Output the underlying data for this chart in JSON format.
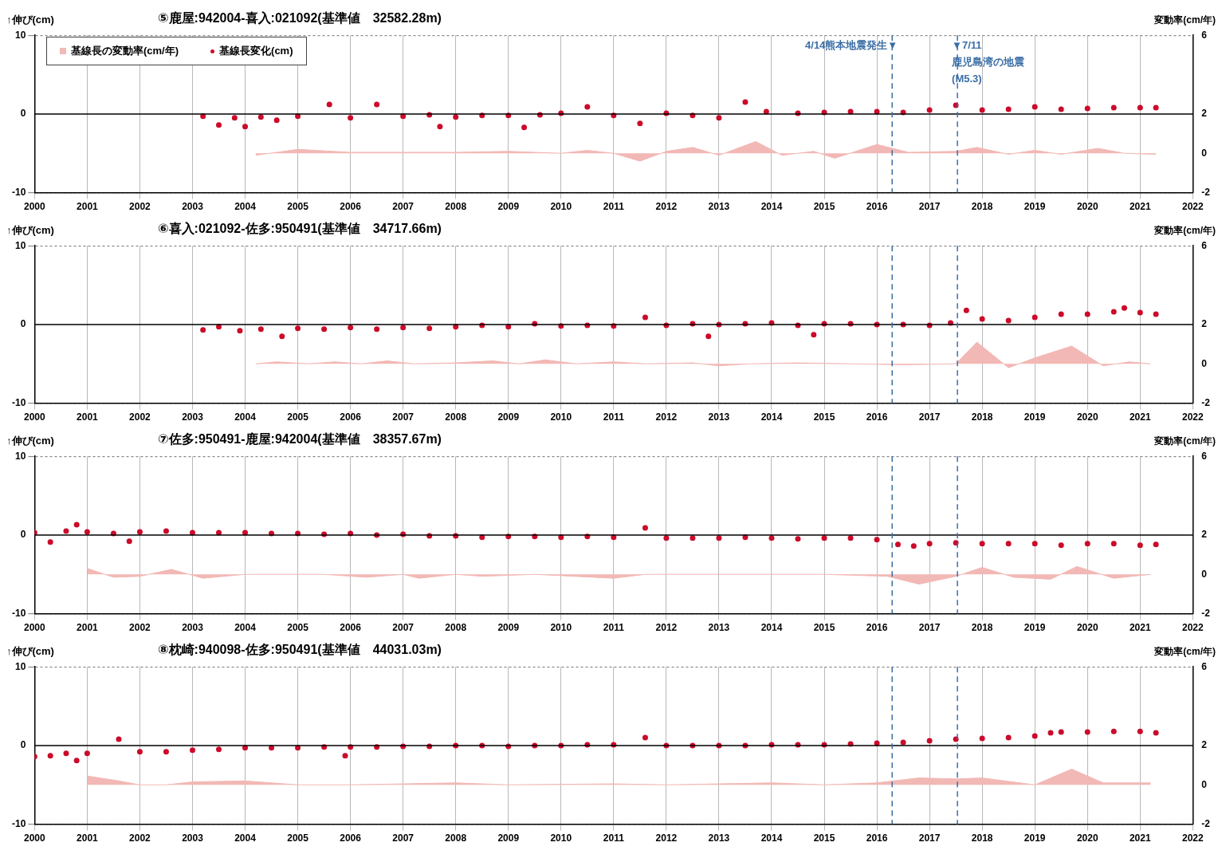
{
  "chart_data": [
    {
      "type": "scatter",
      "title": "⑤鹿屋:942004-喜入:021092(基準値　32582.28m)",
      "ylabel": "↑伸び(cm)",
      "y2label": "変動率(cm/年)",
      "xlim": [
        2000,
        2022
      ],
      "xticks": [
        2000,
        2001,
        2002,
        2003,
        2004,
        2005,
        2006,
        2007,
        2008,
        2009,
        2010,
        2011,
        2012,
        2013,
        2014,
        2015,
        2016,
        2017,
        2018,
        2019,
        2020,
        2021,
        2022
      ],
      "ylim": [
        -10,
        10
      ],
      "yticks": [
        -10,
        0,
        10
      ],
      "y2lim": [
        -2,
        6
      ],
      "y2ticks": [
        -2,
        0,
        2,
        6
      ],
      "grid": true,
      "legend": "top left",
      "ref_lines": [
        {
          "axis": "y",
          "value": 0,
          "color": "#000000"
        },
        {
          "axis": "x",
          "value": 2016.29,
          "label": "4/14熊本地震発生▼",
          "color": "#3a6ea5",
          "line_style": "dashed"
        },
        {
          "axis": "x",
          "value": 2017.53,
          "label": "▼7/11\n鹿児島湾の地震\n(M5.3)",
          "color": "#3a6ea5",
          "line_style": "dashed"
        }
      ],
      "series": [
        {
          "name": "基線長の変動率(cm/年)",
          "type": "area",
          "axis": "y2",
          "color": "#f2b8b5",
          "x": [
            2004.2,
            2005,
            2006,
            2007,
            2008,
            2009,
            2010,
            2010.5,
            2011,
            2011.5,
            2012,
            2012.5,
            2013,
            2013.7,
            2014.2,
            2014.8,
            2015.2,
            2016,
            2016.6,
            2017.5,
            2017.9,
            2018.5,
            2019,
            2019.5,
            2020.2,
            2020.7,
            2021.3
          ],
          "values": [
            -0.1,
            0.2,
            0.05,
            0.05,
            0.05,
            0.1,
            0,
            0.15,
            0,
            -0.4,
            0.1,
            0.3,
            -0.1,
            0.6,
            -0.1,
            0.1,
            -0.25,
            0.45,
            0.05,
            0.1,
            0.3,
            -0.05,
            0.15,
            -0.05,
            0.25,
            0,
            -0.05
          ]
        },
        {
          "name": "基線長変化(cm)",
          "marker": "circle",
          "color": "#cc0a2a",
          "x": [
            2003.2,
            2003.5,
            2003.8,
            2004.0,
            2004.3,
            2004.6,
            2005.0,
            2005.6,
            2006.0,
            2006.5,
            2007.0,
            2007.5,
            2007.7,
            2008.0,
            2008.5,
            2009.0,
            2009.3,
            2009.6,
            2010.0,
            2010.5,
            2011.0,
            2011.5,
            2012.0,
            2012.5,
            2013.0,
            2013.5,
            2013.9,
            2014.5,
            2015.0,
            2015.5,
            2016.0,
            2016.5,
            2017.0,
            2017.5,
            2018.0,
            2018.5,
            2019.0,
            2019.5,
            2020.0,
            2020.5,
            2021.0,
            2021.3
          ],
          "values": [
            -0.3,
            -1.4,
            -0.5,
            -1.6,
            -0.4,
            -0.8,
            -0.3,
            1.2,
            -0.5,
            1.2,
            -0.3,
            -0.1,
            -1.6,
            -0.4,
            -0.2,
            -0.2,
            -1.7,
            -0.1,
            0.1,
            0.9,
            -0.2,
            -1.2,
            0.1,
            -0.2,
            -0.5,
            1.5,
            0.3,
            0.1,
            0.2,
            0.3,
            0.3,
            0.2,
            0.5,
            1.1,
            0.5,
            0.6,
            0.9,
            0.6,
            0.7,
            0.8,
            0.8,
            0.8
          ]
        }
      ]
    },
    {
      "type": "scatter",
      "title": "⑥喜入:021092-佐多:950491(基準値　34717.66m)",
      "ylabel": "↑伸び(cm)",
      "y2label": "変動率(cm/年)",
      "xlim": [
        2000,
        2022
      ],
      "xticks": [
        2000,
        2001,
        2002,
        2003,
        2004,
        2005,
        2006,
        2007,
        2008,
        2009,
        2010,
        2011,
        2012,
        2013,
        2014,
        2015,
        2016,
        2017,
        2018,
        2019,
        2020,
        2021,
        2022
      ],
      "ylim": [
        -10,
        10
      ],
      "yticks": [
        -10,
        0,
        10
      ],
      "y2lim": [
        -2,
        6
      ],
      "y2ticks": [
        -2,
        0,
        2,
        6
      ],
      "grid": true,
      "ref_lines": [
        {
          "axis": "y",
          "value": 0,
          "color": "#000000"
        },
        {
          "axis": "x",
          "value": 2016.29,
          "color": "#3a6ea5",
          "line_style": "dashed"
        },
        {
          "axis": "x",
          "value": 2017.53,
          "color": "#3a6ea5",
          "line_style": "dashed"
        }
      ],
      "series": [
        {
          "type": "area",
          "axis": "y2",
          "color": "#f2b8b5",
          "x": [
            2004.2,
            2004.6,
            2005.2,
            2005.7,
            2006.2,
            2006.7,
            2007.2,
            2008.0,
            2008.7,
            2009.2,
            2009.7,
            2010.3,
            2011,
            2011.6,
            2012.5,
            2013,
            2013.6,
            2014.5,
            2015.5,
            2016.5,
            2017.5,
            2017.9,
            2018.5,
            2019,
            2019.7,
            2020.3,
            2020.8,
            2021.2
          ],
          "values": [
            0,
            0.1,
            0,
            0.1,
            0,
            0.15,
            0,
            0.05,
            0.15,
            0,
            0.2,
            0,
            0.1,
            0,
            0.05,
            -0.1,
            0,
            0.05,
            0,
            -0.05,
            0,
            1.1,
            -0.2,
            0.3,
            0.9,
            -0.1,
            0.1,
            0
          ]
        },
        {
          "marker": "circle",
          "color": "#cc0a2a",
          "x": [
            2003.2,
            2003.5,
            2003.9,
            2004.3,
            2004.7,
            2005.0,
            2005.5,
            2006.0,
            2006.5,
            2007.0,
            2007.5,
            2008.0,
            2008.5,
            2009.0,
            2009.5,
            2010.0,
            2010.5,
            2011.0,
            2011.6,
            2012.0,
            2012.5,
            2012.8,
            2013.0,
            2013.5,
            2014.0,
            2014.5,
            2014.8,
            2015.0,
            2015.5,
            2016.0,
            2016.5,
            2017.0,
            2017.4,
            2017.7,
            2018.0,
            2018.5,
            2019.0,
            2019.5,
            2020.0,
            2020.5,
            2020.7,
            2021.0,
            2021.3
          ],
          "values": [
            -0.7,
            -0.3,
            -0.8,
            -0.6,
            -1.5,
            -0.5,
            -0.6,
            -0.4,
            -0.6,
            -0.4,
            -0.5,
            -0.3,
            -0.1,
            -0.3,
            0.1,
            -0.2,
            -0.1,
            -0.2,
            0.9,
            -0.1,
            0.1,
            -1.5,
            0.0,
            0.1,
            0.2,
            -0.1,
            -1.3,
            0.1,
            0.1,
            0.0,
            0.0,
            -0.1,
            0.2,
            1.8,
            0.7,
            0.5,
            0.9,
            1.3,
            1.3,
            1.6,
            2.1,
            1.5,
            1.3
          ]
        }
      ]
    },
    {
      "type": "scatter",
      "title": "⑦佐多:950491-鹿屋:942004(基準値　38357.67m)",
      "ylabel": "↑伸び(cm)",
      "y2label": "変動率(cm/年)",
      "xlim": [
        2000,
        2022
      ],
      "xticks": [
        2000,
        2001,
        2002,
        2003,
        2004,
        2005,
        2006,
        2007,
        2008,
        2009,
        2010,
        2011,
        2012,
        2013,
        2014,
        2015,
        2016,
        2017,
        2018,
        2019,
        2020,
        2021,
        2022
      ],
      "ylim": [
        -10,
        10
      ],
      "yticks": [
        -10,
        0,
        10
      ],
      "y2lim": [
        -2,
        6
      ],
      "y2ticks": [
        -2,
        0,
        2,
        6
      ],
      "grid": true,
      "ref_lines": [
        {
          "axis": "y",
          "value": 0,
          "color": "#000000"
        },
        {
          "axis": "x",
          "value": 2016.29,
          "color": "#3a6ea5",
          "line_style": "dashed"
        },
        {
          "axis": "x",
          "value": 2017.53,
          "color": "#3a6ea5",
          "line_style": "dashed"
        }
      ],
      "series": [
        {
          "type": "area",
          "axis": "y2",
          "color": "#f2b8b5",
          "x": [
            2001,
            2001.5,
            2002,
            2002.6,
            2003.2,
            2004,
            2005.5,
            2006.3,
            2007,
            2007.3,
            2008,
            2008.5,
            2009.5,
            2011,
            2011.6,
            2013,
            2015,
            2016.2,
            2016.8,
            2017.5,
            2018,
            2018.6,
            2019.3,
            2019.8,
            2020.5,
            2021.2
          ],
          "values": [
            0.3,
            -0.15,
            -0.1,
            0.25,
            -0.2,
            0,
            0,
            -0.15,
            0,
            -0.2,
            0,
            -0.1,
            0,
            -0.2,
            0,
            0,
            0,
            -0.1,
            -0.5,
            -0.1,
            0.35,
            -0.15,
            -0.25,
            0.4,
            -0.2,
            0
          ]
        },
        {
          "marker": "circle",
          "color": "#cc0a2a",
          "x": [
            2000.0,
            2000.3,
            2000.6,
            2000.8,
            2001.0,
            2001.5,
            2001.8,
            2002.0,
            2002.5,
            2003.0,
            2003.5,
            2004.0,
            2004.5,
            2005.0,
            2005.5,
            2006.0,
            2006.5,
            2007.0,
            2007.5,
            2008.0,
            2008.5,
            2009.0,
            2009.5,
            2010.0,
            2010.5,
            2011.0,
            2011.6,
            2012.0,
            2012.5,
            2013.0,
            2013.5,
            2014.0,
            2014.5,
            2015.0,
            2015.5,
            2016.0,
            2016.4,
            2016.7,
            2017.0,
            2017.5,
            2018.0,
            2018.5,
            2019.0,
            2019.5,
            2020.0,
            2020.5,
            2021.0,
            2021.3
          ],
          "values": [
            0.3,
            -0.9,
            0.5,
            1.3,
            0.4,
            0.2,
            -0.8,
            0.4,
            0.5,
            0.3,
            0.3,
            0.3,
            0.2,
            0.2,
            0.1,
            0.2,
            0.0,
            0.1,
            -0.1,
            -0.1,
            -0.3,
            -0.2,
            -0.2,
            -0.3,
            -0.2,
            -0.3,
            0.9,
            -0.4,
            -0.4,
            -0.4,
            -0.3,
            -0.4,
            -0.5,
            -0.4,
            -0.4,
            -0.6,
            -1.2,
            -1.4,
            -1.1,
            -1.0,
            -1.1,
            -1.1,
            -1.1,
            -1.3,
            -1.1,
            -1.1,
            -1.3,
            -1.2
          ]
        }
      ]
    },
    {
      "type": "scatter",
      "title": "⑧枕崎:940098-佐多:950491(基準値　44031.03m)",
      "ylabel": "↑伸び(cm)",
      "y2label": "変動率(cm/年)",
      "xlim": [
        2000,
        2022
      ],
      "xticks": [
        2000,
        2001,
        2002,
        2003,
        2004,
        2005,
        2006,
        2007,
        2008,
        2009,
        2010,
        2011,
        2012,
        2013,
        2014,
        2015,
        2016,
        2017,
        2018,
        2019,
        2020,
        2021,
        2022
      ],
      "ylim": [
        -10,
        10
      ],
      "yticks": [
        -10,
        0,
        10
      ],
      "y2lim": [
        -2,
        6
      ],
      "y2ticks": [
        -2,
        0,
        2,
        6
      ],
      "grid": true,
      "ref_lines": [
        {
          "axis": "y",
          "value": 0,
          "color": "#000000"
        },
        {
          "axis": "x",
          "value": 2016.29,
          "color": "#3a6ea5",
          "line_style": "dashed"
        },
        {
          "axis": "x",
          "value": 2017.53,
          "color": "#3a6ea5",
          "line_style": "dashed"
        }
      ],
      "series": [
        {
          "type": "area",
          "axis": "y2",
          "color": "#f2b8b5",
          "x": [
            2001,
            2001.6,
            2002,
            2002.5,
            2003,
            2004,
            2005,
            2006,
            2008,
            2009,
            2011,
            2012,
            2014,
            2015,
            2016,
            2016.8,
            2017.5,
            2018,
            2019,
            2019.7,
            2020.3,
            2021.2
          ],
          "values": [
            0.45,
            0.2,
            0,
            0,
            0.15,
            0.2,
            0,
            0,
            0.1,
            0,
            0.05,
            0,
            0.1,
            0,
            0.1,
            0.35,
            0.3,
            0.35,
            0,
            0.8,
            0.1,
            0.1
          ]
        },
        {
          "marker": "circle",
          "color": "#cc0a2a",
          "x": [
            2000.0,
            2000.3,
            2000.6,
            2000.8,
            2001.0,
            2001.6,
            2002.0,
            2002.5,
            2003.0,
            2003.5,
            2004.0,
            2004.5,
            2005.0,
            2005.5,
            2005.9,
            2006.0,
            2006.5,
            2007.0,
            2007.5,
            2008.0,
            2008.5,
            2009.0,
            2009.5,
            2010.0,
            2010.5,
            2011.0,
            2011.6,
            2012.0,
            2012.5,
            2013.0,
            2013.5,
            2014.0,
            2014.5,
            2015.0,
            2015.5,
            2016.0,
            2016.5,
            2017.0,
            2017.5,
            2018.0,
            2018.5,
            2019.0,
            2019.3,
            2019.5,
            2020.0,
            2020.5,
            2021.0,
            2021.3
          ],
          "values": [
            -1.4,
            -1.3,
            -1.0,
            -1.9,
            -1.0,
            0.8,
            -0.8,
            -0.8,
            -0.6,
            -0.5,
            -0.3,
            -0.3,
            -0.3,
            -0.2,
            -1.3,
            -0.2,
            -0.2,
            -0.1,
            -0.1,
            0.0,
            0.0,
            -0.1,
            0.0,
            0.0,
            0.1,
            0.1,
            1.0,
            0.0,
            0.0,
            0.0,
            0.0,
            0.1,
            0.1,
            0.1,
            0.2,
            0.3,
            0.4,
            0.6,
            0.8,
            0.9,
            1.0,
            1.2,
            1.6,
            1.7,
            1.7,
            1.8,
            1.8,
            1.6
          ]
        }
      ]
    }
  ]
}
